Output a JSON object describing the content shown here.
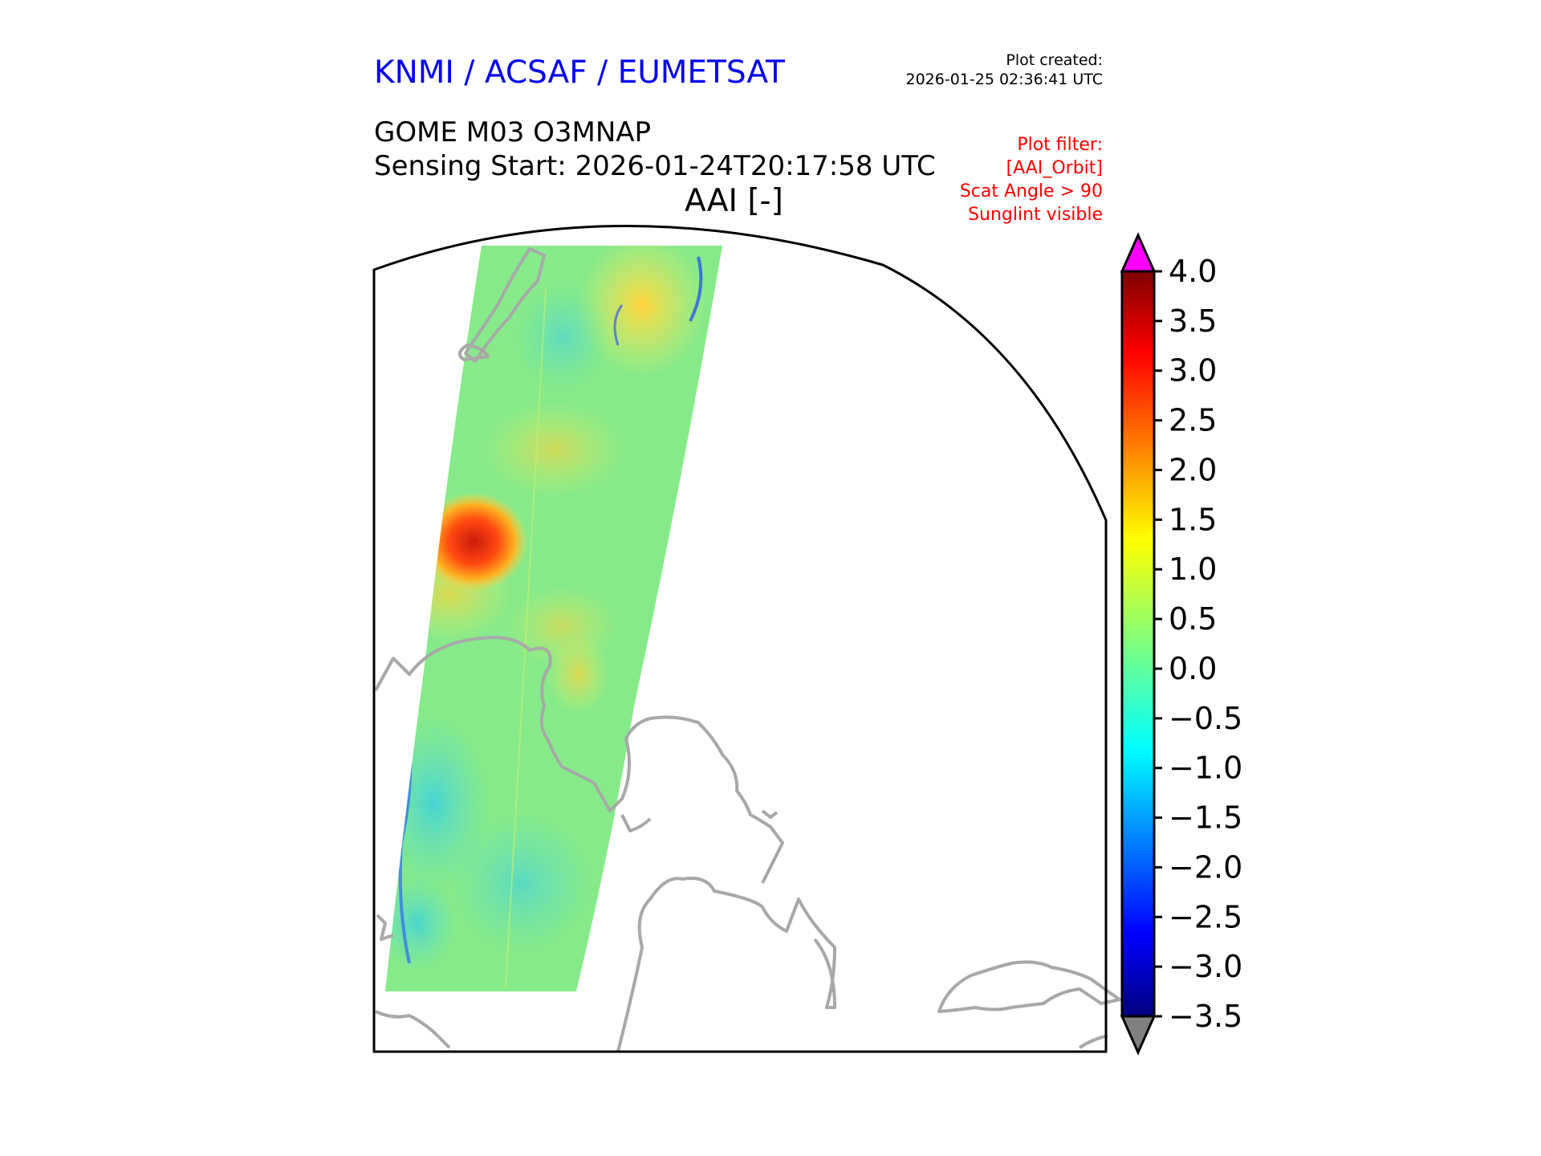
{
  "header": {
    "organization": "KNMI / ACSAF / EUMETSAT",
    "plot_created_label": "Plot created:",
    "plot_created_time": "2026-01-25 02:36:41 UTC",
    "product": "GOME M03 O3MNAP",
    "sensing_start": "Sensing Start: 2026-01-24T20:17:58 UTC",
    "variable": "AAI [-]"
  },
  "plot_filter": [
    "Plot filter:",
    "[AAI_Orbit]",
    "Scat Angle > 90",
    "Sunglint visible"
  ],
  "colorbar": {
    "min": -3.5,
    "max": 4.0,
    "ticks": [
      "4.0",
      "3.5",
      "3.0",
      "2.5",
      "2.0",
      "1.5",
      "1.0",
      "0.5",
      "0.0",
      "−0.5",
      "−1.0",
      "−1.5",
      "−2.0",
      "−2.5",
      "−3.0",
      "−3.5"
    ],
    "colormap": "jet",
    "over_color": "#ff00ff",
    "under_color": "#808080"
  },
  "colors": {
    "coastline": "#a8a8a8",
    "frame": "#000000"
  }
}
